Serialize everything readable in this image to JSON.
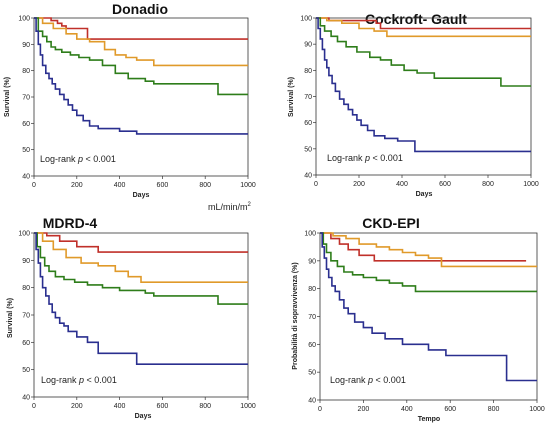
{
  "series_colors": [
    "#c0302a",
    "#e09a2a",
    "#2e7d1a",
    "#2a2f8f"
  ],
  "unit_note": "mL/min/m",
  "unit_sup": "2",
  "chart_data": [
    {
      "type": "line",
      "title": "Donadio",
      "xlabel": "Days",
      "ylabel": "Survival (%)",
      "xlim": [
        0,
        1000
      ],
      "ylim": [
        40,
        100
      ],
      "xticks": [
        0,
        200,
        400,
        600,
        800,
        1000
      ],
      "yticks": [
        40,
        50,
        60,
        70,
        80,
        90,
        100
      ],
      "annotation_prefix": "Log-rank ",
      "annotation_p": "p",
      "annotation_suffix": " < 0.001",
      "series": [
        {
          "x": [
            0,
            80,
            110,
            130,
            150,
            250,
            1000
          ],
          "y": [
            100,
            99,
            98,
            97,
            96,
            92,
            92
          ]
        },
        {
          "x": [
            0,
            40,
            90,
            150,
            200,
            260,
            330,
            380,
            430,
            480,
            560,
            1000
          ],
          "y": [
            100,
            98,
            96,
            94,
            92,
            91,
            88,
            86,
            85,
            84,
            82,
            82
          ]
        },
        {
          "x": [
            0,
            20,
            40,
            60,
            80,
            100,
            130,
            170,
            210,
            260,
            320,
            380,
            440,
            520,
            560,
            840,
            860,
            1000
          ],
          "y": [
            100,
            95,
            93,
            91,
            89,
            88,
            87,
            86,
            85,
            84,
            82,
            79,
            77,
            76,
            75,
            75,
            71,
            71
          ]
        },
        {
          "x": [
            0,
            10,
            20,
            30,
            40,
            55,
            70,
            85,
            100,
            120,
            140,
            160,
            180,
            200,
            230,
            260,
            300,
            350,
            400,
            480,
            1000
          ],
          "y": [
            100,
            95,
            90,
            86,
            82,
            79,
            77,
            75,
            73,
            71,
            69,
            67,
            65,
            63,
            61,
            59,
            58,
            58,
            57,
            56,
            56
          ]
        }
      ]
    },
    {
      "type": "line",
      "title": "Cockroft- Gault",
      "xlabel": "Days",
      "ylabel": "Survival (%)",
      "xlim": [
        0,
        1000
      ],
      "ylim": [
        40,
        100
      ],
      "xticks": [
        0,
        200,
        400,
        600,
        800,
        1000
      ],
      "yticks": [
        40,
        50,
        60,
        70,
        80,
        90,
        100
      ],
      "annotation_prefix": "Log-rank ",
      "annotation_p": "p",
      "annotation_suffix": " < 0.001",
      "series": [
        {
          "x": [
            0,
            60,
            180,
            280,
            300,
            1000
          ],
          "y": [
            100,
            99,
            99,
            98,
            96,
            96
          ]
        },
        {
          "x": [
            0,
            50,
            120,
            200,
            270,
            330,
            1000
          ],
          "y": [
            100,
            99,
            98,
            96,
            95,
            93,
            93
          ]
        },
        {
          "x": [
            0,
            20,
            40,
            70,
            100,
            140,
            190,
            250,
            300,
            350,
            410,
            470,
            550,
            840,
            860,
            1000
          ],
          "y": [
            100,
            97,
            95,
            93,
            91,
            89,
            87,
            85,
            84,
            82,
            80,
            79,
            77,
            77,
            74,
            74
          ]
        },
        {
          "x": [
            0,
            10,
            20,
            30,
            40,
            50,
            60,
            75,
            90,
            110,
            130,
            150,
            170,
            190,
            210,
            240,
            270,
            320,
            380,
            460,
            1000
          ],
          "y": [
            100,
            96,
            92,
            88,
            84,
            81,
            78,
            75,
            72,
            69,
            67,
            65,
            63,
            61,
            59,
            57,
            55,
            54,
            53,
            49,
            49
          ]
        }
      ]
    },
    {
      "type": "line",
      "title": "MDRD-4",
      "xlabel": "Days",
      "ylabel": "Survival (%)",
      "xlim": [
        0,
        1000
      ],
      "ylim": [
        40,
        100
      ],
      "xticks": [
        0,
        200,
        400,
        600,
        800,
        1000
      ],
      "yticks": [
        40,
        50,
        60,
        70,
        80,
        90,
        100
      ],
      "annotation_prefix": "Log-rank ",
      "annotation_p": "p",
      "annotation_suffix": " < 0.001",
      "series": [
        {
          "x": [
            0,
            60,
            120,
            200,
            300,
            1000
          ],
          "y": [
            100,
            99,
            97,
            95,
            93,
            93
          ]
        },
        {
          "x": [
            0,
            40,
            90,
            150,
            220,
            300,
            380,
            440,
            500,
            1000
          ],
          "y": [
            100,
            97,
            94,
            91,
            89,
            88,
            86,
            84,
            82,
            82
          ]
        },
        {
          "x": [
            0,
            15,
            30,
            50,
            70,
            100,
            140,
            190,
            250,
            320,
            400,
            520,
            560,
            840,
            860,
            1000
          ],
          "y": [
            100,
            95,
            91,
            88,
            86,
            84,
            83,
            82,
            81,
            80,
            79,
            78,
            77,
            77,
            74,
            74
          ]
        },
        {
          "x": [
            0,
            10,
            20,
            30,
            40,
            55,
            70,
            85,
            100,
            120,
            140,
            160,
            200,
            250,
            300,
            480,
            1000
          ],
          "y": [
            100,
            94,
            89,
            84,
            80,
            77,
            74,
            71,
            69,
            67,
            66,
            64,
            62,
            60,
            56,
            52,
            52
          ]
        }
      ]
    },
    {
      "type": "line",
      "title": "CKD-EPI",
      "xlabel": "Tempo",
      "ylabel": "Probabilità di sopravvivenza (%)",
      "xlim": [
        0,
        1000
      ],
      "ylim": [
        40,
        100
      ],
      "xticks": [
        0,
        200,
        400,
        600,
        800,
        1000
      ],
      "yticks": [
        40,
        50,
        60,
        70,
        80,
        90,
        100
      ],
      "annotation_prefix": "Log-rank ",
      "annotation_p": "p",
      "annotation_suffix": " < 0.001",
      "series": [
        {
          "x": [
            0,
            50,
            90,
            130,
            180,
            250,
            950
          ],
          "y": [
            100,
            98,
            96,
            94,
            92,
            90,
            90
          ]
        },
        {
          "x": [
            0,
            60,
            120,
            180,
            260,
            320,
            380,
            440,
            500,
            560,
            1000
          ],
          "y": [
            100,
            99,
            98,
            96,
            95,
            94,
            93,
            92,
            91,
            88,
            88
          ]
        },
        {
          "x": [
            0,
            15,
            30,
            50,
            80,
            110,
            150,
            200,
            260,
            320,
            380,
            440,
            1000
          ],
          "y": [
            100,
            96,
            93,
            90,
            88,
            86,
            85,
            84,
            83,
            82,
            81,
            79,
            79
          ]
        },
        {
          "x": [
            0,
            10,
            20,
            30,
            40,
            55,
            70,
            90,
            110,
            130,
            160,
            200,
            240,
            300,
            380,
            500,
            580,
            840,
            860,
            1000
          ],
          "y": [
            100,
            95,
            91,
            87,
            84,
            81,
            79,
            76,
            73,
            71,
            68,
            66,
            64,
            62,
            60,
            58,
            56,
            56,
            47,
            47
          ]
        }
      ]
    }
  ]
}
